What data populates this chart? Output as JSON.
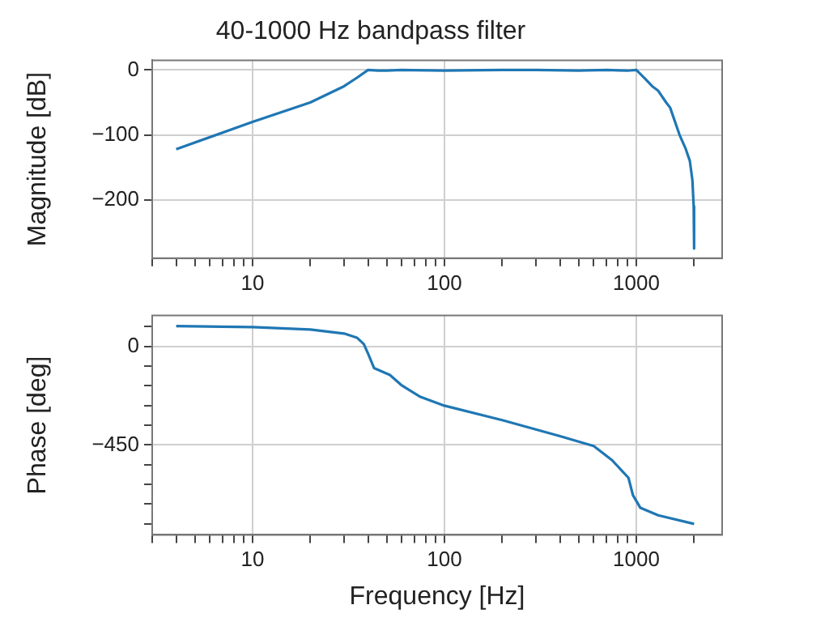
{
  "chart_data": [
    {
      "type": "line",
      "title": "40-1000 Hz bandpass filter",
      "ylabel": "Magnitude [dB]",
      "log": "x",
      "grid": true,
      "xlim": [
        3,
        2800
      ],
      "ylim": [
        -290,
        15
      ],
      "xticks": [
        {
          "value": 3,
          "label": null
        },
        {
          "value": 4,
          "label": null
        },
        {
          "value": 5,
          "label": null
        },
        {
          "value": 6,
          "label": null
        },
        {
          "value": 7,
          "label": null
        },
        {
          "value": 8,
          "label": null
        },
        {
          "value": 9,
          "label": null
        },
        10,
        {
          "value": 20,
          "label": null
        },
        {
          "value": 30,
          "label": null
        },
        {
          "value": 40,
          "label": null
        },
        {
          "value": 50,
          "label": null
        },
        {
          "value": 60,
          "label": null
        },
        {
          "value": 70,
          "label": null
        },
        {
          "value": 80,
          "label": null
        },
        {
          "value": 90,
          "label": null
        },
        100,
        {
          "value": 200,
          "label": null
        },
        {
          "value": 300,
          "label": null
        },
        {
          "value": 400,
          "label": null
        },
        {
          "value": 500,
          "label": null
        },
        {
          "value": 600,
          "label": null
        },
        {
          "value": 700,
          "label": null
        },
        {
          "value": 800,
          "label": null
        },
        {
          "value": 900,
          "label": null
        },
        1000,
        {
          "value": 2000,
          "label": null
        }
      ],
      "yticks": [
        {
          "value": -200,
          "label": "−200"
        },
        {
          "value": -100,
          "label": "−100"
        },
        0
      ],
      "series": [
        {
          "color": "#1f77b4",
          "x": [
            4,
            10,
            20,
            30,
            35,
            40,
            45,
            50,
            60,
            100,
            200,
            300,
            500,
            700,
            900,
            1000,
            1100,
            1210,
            1300,
            1430,
            1500,
            1680,
            1800,
            1900,
            1960,
            1990,
            2000
          ],
          "values": [
            -122,
            -80,
            -50,
            -25,
            -12,
            0,
            -1,
            -1,
            0,
            -1,
            0,
            0,
            -1,
            0,
            -1,
            0,
            -12,
            -25,
            -32,
            -50,
            -58,
            -100,
            -120,
            -140,
            -170,
            -210,
            -275
          ]
        }
      ]
    },
    {
      "type": "line",
      "xlabel": "Frequency [Hz]",
      "ylabel": "Phase [deg]",
      "log": "x",
      "grid": true,
      "xlim": [
        3,
        2800
      ],
      "ylim": [
        -860,
        140
      ],
      "xticks": [
        {
          "value": 3,
          "label": null
        },
        {
          "value": 4,
          "label": null
        },
        {
          "value": 5,
          "label": null
        },
        {
          "value": 6,
          "label": null
        },
        {
          "value": 7,
          "label": null
        },
        {
          "value": 8,
          "label": null
        },
        {
          "value": 9,
          "label": null
        },
        10,
        {
          "value": 20,
          "label": null
        },
        {
          "value": 30,
          "label": null
        },
        {
          "value": 40,
          "label": null
        },
        {
          "value": 50,
          "label": null
        },
        {
          "value": 60,
          "label": null
        },
        {
          "value": 70,
          "label": null
        },
        {
          "value": 80,
          "label": null
        },
        {
          "value": 90,
          "label": null
        },
        100,
        {
          "value": 200,
          "label": null
        },
        {
          "value": 300,
          "label": null
        },
        {
          "value": 400,
          "label": null
        },
        {
          "value": 500,
          "label": null
        },
        {
          "value": 600,
          "label": null
        },
        {
          "value": 700,
          "label": null
        },
        {
          "value": 800,
          "label": null
        },
        {
          "value": 900,
          "label": null
        },
        1000,
        {
          "value": 2000,
          "label": null
        }
      ],
      "yticks": [
        {
          "value": -810,
          "label": null
        },
        {
          "value": -720,
          "label": null
        },
        {
          "value": -630,
          "label": null
        },
        {
          "value": -540,
          "label": null
        },
        {
          "value": -450,
          "label": "−450"
        },
        {
          "value": -360,
          "label": null
        },
        {
          "value": -270,
          "label": null
        },
        {
          "value": -180,
          "label": null
        },
        {
          "value": -90,
          "label": null
        },
        0,
        {
          "value": 90,
          "label": null
        }
      ],
      "series": [
        {
          "color": "#1f77b4",
          "x": [
            4,
            10,
            20,
            30,
            35,
            38,
            40,
            43,
            52,
            60,
            75,
            100,
            200,
            400,
            600,
            750,
            910,
            960,
            1050,
            1300,
            2000
          ],
          "values": [
            92,
            87,
            76,
            58,
            39,
            10,
            -34,
            -100,
            -131,
            -179,
            -231,
            -271,
            -337,
            -410,
            -455,
            -521,
            -600,
            -679,
            -737,
            -771,
            -810
          ]
        }
      ]
    }
  ]
}
